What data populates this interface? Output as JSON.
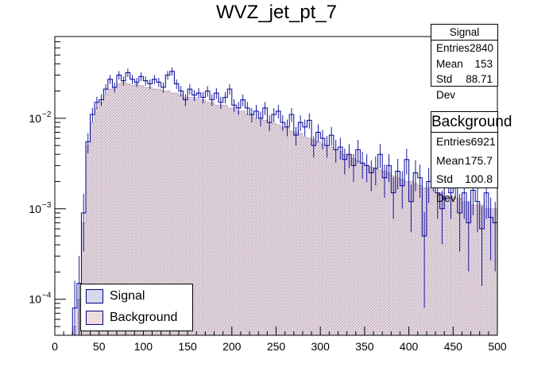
{
  "chart_data": {
    "type": "bar",
    "title": "WVZ_jet_pt_7",
    "xlabel": "",
    "ylabel": "",
    "xlim": [
      0,
      500
    ],
    "ylim": [
      4e-05,
      0.08
    ],
    "yscale": "log",
    "bin_width": 5,
    "x_ticks": [
      "0",
      "50",
      "100",
      "150",
      "200",
      "250",
      "300",
      "350",
      "400",
      "450",
      "500"
    ],
    "y_ticks": [
      {
        "value": 0.0001,
        "base": "10",
        "exp": "−4"
      },
      {
        "value": 0.001,
        "base": "10",
        "exp": "−3"
      },
      {
        "value": 0.01,
        "base": "10",
        "exp": "−2"
      }
    ],
    "legend_position": "bottom-left",
    "series": [
      {
        "name": "Signal",
        "color": "#000099",
        "fill": "#d8d8ec",
        "x_low": [
          20,
          25,
          30,
          35,
          40,
          45,
          50,
          55,
          60,
          65,
          70,
          75,
          80,
          85,
          90,
          95,
          100,
          105,
          110,
          115,
          120,
          125,
          130,
          135,
          140,
          145,
          150,
          155,
          160,
          165,
          170,
          175,
          180,
          185,
          190,
          195,
          200,
          205,
          210,
          215,
          220,
          225,
          230,
          235,
          240,
          245,
          250,
          255,
          260,
          265,
          270,
          275,
          280,
          285,
          290,
          295,
          300,
          305,
          310,
          315,
          320,
          325,
          330,
          335,
          340,
          345,
          350,
          355,
          360,
          365,
          370,
          375,
          380,
          385,
          390,
          395,
          400,
          405,
          410,
          415,
          420,
          425,
          430,
          435,
          440,
          445,
          450,
          455,
          460,
          465,
          470,
          475,
          480,
          485,
          490,
          495
        ],
        "values": [
          8e-05,
          0.00015,
          0.0009,
          0.0055,
          0.011,
          0.015,
          0.016,
          0.021,
          0.027,
          0.022,
          0.03,
          0.026,
          0.032,
          0.027,
          0.025,
          0.029,
          0.026,
          0.024,
          0.027,
          0.025,
          0.022,
          0.03,
          0.033,
          0.024,
          0.02,
          0.016,
          0.021,
          0.018,
          0.019,
          0.017,
          0.02,
          0.016,
          0.019,
          0.015,
          0.017,
          0.021,
          0.014,
          0.013,
          0.016,
          0.013,
          0.011,
          0.012,
          0.01,
          0.013,
          0.009,
          0.011,
          0.012,
          0.009,
          0.008,
          0.011,
          0.0065,
          0.009,
          0.008,
          0.0095,
          0.005,
          0.007,
          0.006,
          0.005,
          0.0065,
          0.0045,
          0.0048,
          0.0035,
          0.004,
          0.003,
          0.0045,
          0.0032,
          0.003,
          0.0025,
          0.0028,
          0.004,
          0.0022,
          0.003,
          0.0015,
          0.0026,
          0.0018,
          0.0035,
          0.0012,
          0.0025,
          0.0022,
          0.0005,
          0.002,
          0.0025,
          0.0015,
          0.001,
          0.0028,
          0.0015,
          0.0022,
          0.0009,
          0.0015,
          0.0007,
          0.0016,
          0.0012,
          0.0006,
          0.0015,
          0.0008,
          0.0007
        ],
        "stats": {
          "entries": "2840",
          "mean": "153",
          "std_dev": "88.71"
        }
      },
      {
        "name": "Background",
        "color": "#000099",
        "fill": "#eedcdc",
        "x_low": [
          20,
          25,
          30,
          35,
          40,
          45,
          50,
          55,
          60,
          65,
          70,
          75,
          80,
          85,
          90,
          95,
          100,
          105,
          110,
          115,
          120,
          125,
          130,
          135,
          140,
          145,
          150,
          155,
          160,
          165,
          170,
          175,
          180,
          185,
          190,
          195,
          200,
          205,
          210,
          215,
          220,
          225,
          230,
          235,
          240,
          245,
          250,
          255,
          260,
          265,
          270,
          275,
          280,
          285,
          290,
          295,
          300,
          305,
          310,
          315,
          320,
          325,
          330,
          335,
          340,
          345,
          350,
          355,
          360,
          365,
          370,
          375,
          380,
          385,
          390,
          395,
          400,
          405,
          410,
          415,
          420,
          425,
          430,
          435,
          440,
          445,
          450,
          455,
          460,
          465,
          470,
          475,
          480,
          485,
          490,
          495
        ],
        "values": [
          5e-05,
          0.0001,
          0.0007,
          0.005,
          0.009,
          0.013,
          0.015,
          0.018,
          0.021,
          0.022,
          0.024,
          0.025,
          0.024,
          0.023,
          0.024,
          0.023,
          0.022,
          0.022,
          0.021,
          0.021,
          0.02,
          0.02,
          0.019,
          0.019,
          0.018,
          0.017,
          0.017,
          0.017,
          0.016,
          0.016,
          0.015,
          0.015,
          0.014,
          0.014,
          0.014,
          0.013,
          0.013,
          0.012,
          0.012,
          0.011,
          0.011,
          0.01,
          0.01,
          0.0095,
          0.009,
          0.0088,
          0.0085,
          0.008,
          0.0078,
          0.0072,
          0.007,
          0.0068,
          0.0062,
          0.006,
          0.0058,
          0.0055,
          0.0052,
          0.005,
          0.0048,
          0.0045,
          0.0043,
          0.004,
          0.0039,
          0.0036,
          0.0034,
          0.0032,
          0.003,
          0.0029,
          0.0028,
          0.0027,
          0.0026,
          0.0025,
          0.0023,
          0.0022,
          0.0021,
          0.002,
          0.002,
          0.0019,
          0.0018,
          0.0017,
          0.0017,
          0.0016,
          0.0015,
          0.0015,
          0.0014,
          0.0014,
          0.0013,
          0.0013,
          0.0012,
          0.0012,
          0.0011,
          0.0011,
          0.0011,
          0.001,
          0.001,
          0.001
        ],
        "stats": {
          "entries": "6921",
          "mean": "175.7",
          "std_dev": "100.8"
        }
      }
    ]
  },
  "stats_labels": {
    "entries": "Entries",
    "mean": "Mean",
    "std_dev": "Std Dev"
  }
}
